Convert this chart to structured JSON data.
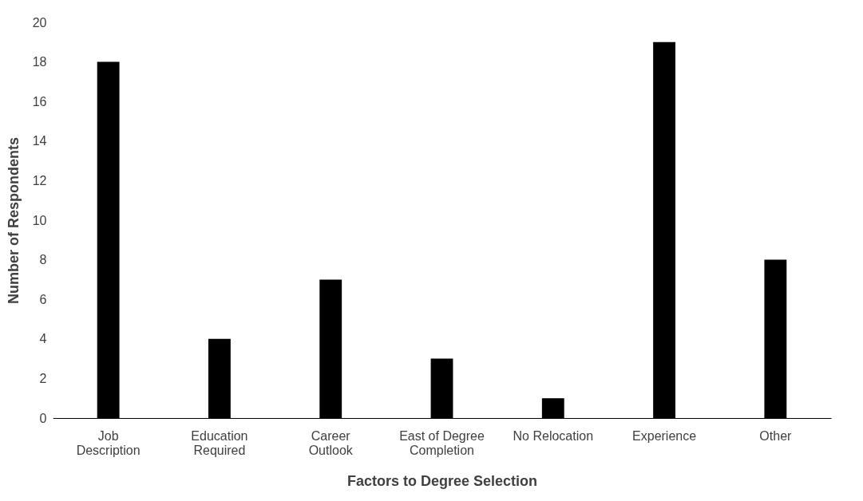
{
  "chart_data": {
    "type": "bar",
    "xlabel": "Factors to Degree Selection",
    "ylabel": "Number of Respondents",
    "categories": [
      "Job Description",
      "Education Required",
      "Career Outlook",
      "East of Degree Completion",
      "No Relocation",
      "Experience",
      "Other"
    ],
    "values": [
      18,
      4,
      7,
      3,
      1,
      19,
      8
    ],
    "color": "#000000",
    "ylim": [
      0,
      20
    ],
    "yticks": [
      0,
      2,
      4,
      6,
      8,
      10,
      12,
      14,
      16,
      18,
      20
    ],
    "grid": false
  }
}
